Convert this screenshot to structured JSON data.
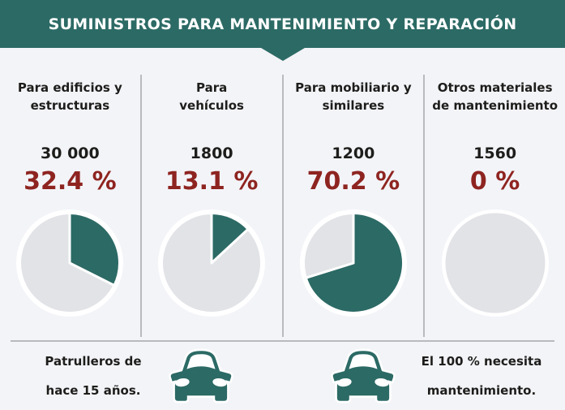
{
  "title": "SUMINISTROS PARA MANTENIMIENTO Y REPARACIÓN",
  "colors": {
    "teal": "#2c6a65",
    "dark_red": "#8e2420",
    "pie_empty": "#e2e3e7",
    "background": "#f3f4f8",
    "divider": "#b9babd",
    "text": "#1d1d1b",
    "white": "#ffffff"
  },
  "chart_data": [
    {
      "type": "pie",
      "title": [
        "Para edificios y",
        "estructuras"
      ],
      "amount_label": "30 000",
      "amount": 30000,
      "percent": 32.4,
      "percent_label": "32.4 %",
      "values": [
        32.4,
        67.6
      ]
    },
    {
      "type": "pie",
      "title": [
        "Para",
        "vehículos"
      ],
      "amount_label": "1800",
      "amount": 1800,
      "percent": 13.1,
      "percent_label": "13.1 %",
      "values": [
        13.1,
        86.9
      ]
    },
    {
      "type": "pie",
      "title": [
        "Para mobiliario y",
        "similares"
      ],
      "amount_label": "1200",
      "amount": 1200,
      "percent": 70.2,
      "percent_label": "70.2 %",
      "values": [
        70.2,
        29.8
      ]
    },
    {
      "type": "pie",
      "title": [
        "Otros materiales",
        "de mantenimiento"
      ],
      "amount_label": "1560",
      "amount": 1560,
      "percent": 0,
      "percent_label": "0 %",
      "values": [
        0,
        100
      ]
    }
  ],
  "footer": {
    "left": [
      "Patrulleros de",
      "hace 15 años."
    ],
    "right": [
      "El 100 % necesita",
      "mantenimiento."
    ]
  }
}
